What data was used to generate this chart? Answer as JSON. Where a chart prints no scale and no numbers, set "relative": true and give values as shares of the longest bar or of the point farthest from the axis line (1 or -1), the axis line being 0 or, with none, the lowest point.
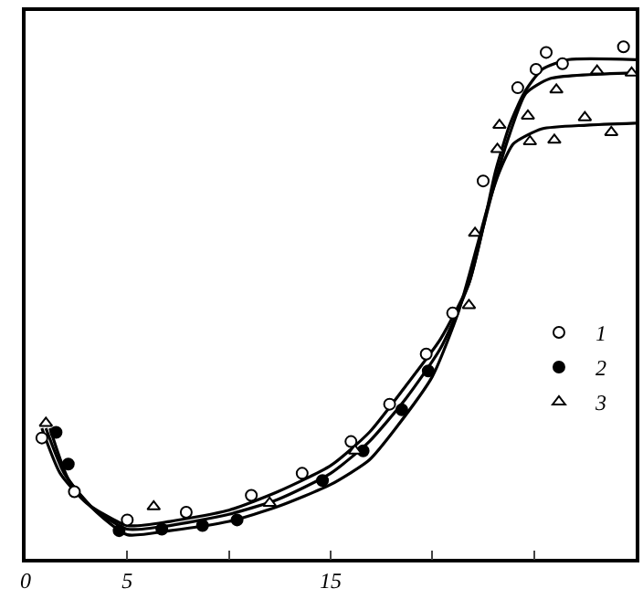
{
  "chart_data": {
    "type": "line",
    "relative": true,
    "xlim": [
      0,
      30
    ],
    "xticks": [
      0,
      5,
      {
        "value": 10,
        "label": null
      },
      15,
      {
        "value": 20,
        "label": null
      },
      {
        "value": 25,
        "label": null
      }
    ],
    "grid": false,
    "legend": "right",
    "line_style": "solid",
    "series": [
      {
        "marker": "none",
        "color": "#000000",
        "x": [
          0.8,
          1.7,
          3.0,
          5.0,
          7.1,
          10,
          12.4,
          15,
          16.9,
          18.7,
          20.4,
          21.8,
          22.5,
          23.1,
          23.8,
          24.5,
          25.4,
          26.7,
          30
        ],
        "values": [
          0.255,
          0.167,
          0.109,
          0.065,
          0.073,
          0.095,
          0.131,
          0.182,
          0.247,
          0.338,
          0.429,
          0.538,
          0.647,
          0.756,
          0.847,
          0.909,
          0.956,
          0.975,
          0.975
        ]
      },
      {
        "marker": "none",
        "color": "#000000",
        "x": [
          1.0,
          1.9,
          3.2,
          5.0,
          7.1,
          10,
          12.4,
          15,
          16.9,
          18.7,
          20.4,
          21.8,
          22.5,
          23.1,
          23.8,
          24.6,
          25.8,
          30
        ],
        "values": [
          0.255,
          0.167,
          0.102,
          0.058,
          0.065,
          0.087,
          0.116,
          0.167,
          0.229,
          0.313,
          0.411,
          0.538,
          0.647,
          0.738,
          0.829,
          0.909,
          0.938,
          0.949
        ]
      },
      {
        "marker": "none",
        "color": "#000000",
        "x": [
          1.2,
          2.1,
          3.5,
          5.0,
          7.1,
          10,
          12.4,
          15,
          16.9,
          18.2,
          20,
          21.3,
          22.2,
          22.7,
          23.3,
          24,
          25.4,
          27.6,
          30
        ],
        "values": [
          0.255,
          0.156,
          0.091,
          0.047,
          0.055,
          0.073,
          0.102,
          0.145,
          0.193,
          0.255,
          0.356,
          0.484,
          0.611,
          0.684,
          0.756,
          0.811,
          0.84,
          0.847,
          0.851
        ]
      },
      {
        "type": "scatter",
        "name": "1",
        "marker": "circle",
        "color": "#ffffff",
        "x": [
          0.8,
          2.4,
          5,
          7.9,
          11.1,
          13.6,
          16,
          17.9,
          19.7,
          21,
          22.5,
          24.2,
          25.1,
          25.6,
          26.4,
          29.4
        ],
        "values": [
          0.236,
          0.131,
          0.076,
          0.091,
          0.124,
          0.167,
          0.229,
          0.302,
          0.4,
          0.48,
          0.738,
          0.92,
          0.956,
          0.989,
          0.967,
          1.0
        ]
      },
      {
        "type": "scatter",
        "name": "2",
        "marker": "circle",
        "color": "#000000",
        "x": [
          1.5,
          2.1,
          4.6,
          6.7,
          8.7,
          10.4,
          14.6,
          16.6,
          18.5,
          19.8
        ],
        "values": [
          0.247,
          0.185,
          0.055,
          0.058,
          0.065,
          0.076,
          0.153,
          0.211,
          0.291,
          0.367
        ]
      },
      {
        "type": "scatter",
        "name": "3",
        "marker": "triangle",
        "color": "#ffffff",
        "x": [
          1.0,
          6.3,
          12,
          16.2,
          21.8,
          22.1,
          23.2,
          23.3,
          24.7,
          24.8,
          26,
          26.1,
          27.5,
          28.1,
          28.8,
          29.8
        ],
        "values": [
          0.265,
          0.102,
          0.109,
          0.211,
          0.495,
          0.636,
          0.8,
          0.847,
          0.865,
          0.815,
          0.818,
          0.916,
          0.862,
          0.953,
          0.833,
          0.949
        ]
      }
    ]
  }
}
